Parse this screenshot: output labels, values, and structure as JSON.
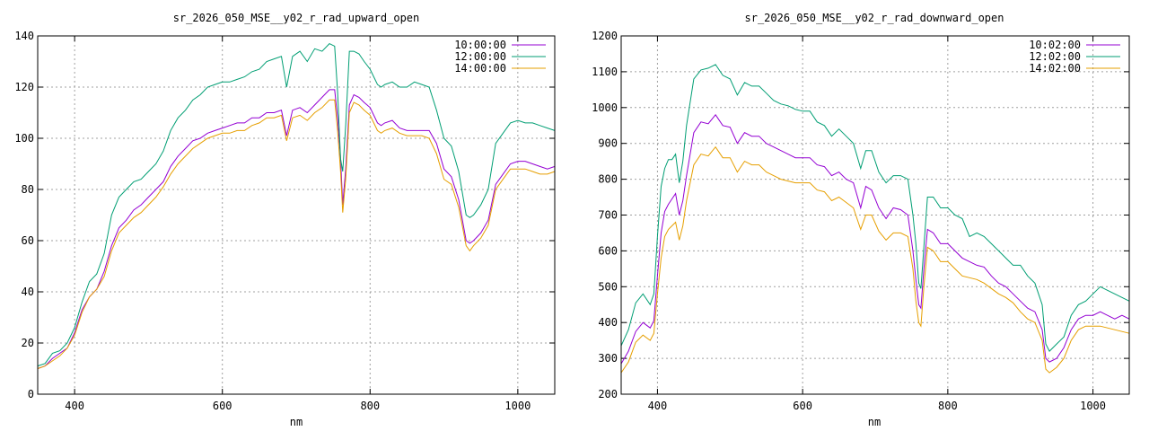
{
  "chart_data": [
    {
      "type": "line",
      "title": "sr_2026_050_MSE__y02_r_rad_upward_open",
      "xlabel": "nm",
      "ylabel": "",
      "xlim": [
        350,
        1050
      ],
      "ylim": [
        0,
        140
      ],
      "xticks": [
        400,
        600,
        800,
        1000
      ],
      "yticks": [
        0,
        20,
        40,
        60,
        80,
        100,
        120,
        140
      ],
      "grid": true,
      "legend_position": "top-right",
      "x": [
        350,
        360,
        370,
        380,
        390,
        400,
        410,
        420,
        430,
        440,
        450,
        460,
        470,
        480,
        490,
        500,
        510,
        520,
        530,
        540,
        550,
        560,
        570,
        580,
        590,
        600,
        610,
        620,
        630,
        640,
        650,
        660,
        670,
        680,
        687,
        695,
        705,
        715,
        725,
        735,
        745,
        752,
        756,
        760,
        763,
        767,
        772,
        778,
        785,
        792,
        800,
        810,
        815,
        820,
        830,
        840,
        850,
        860,
        870,
        880,
        890,
        900,
        910,
        920,
        930,
        935,
        940,
        950,
        960,
        970,
        980,
        990,
        1000,
        1010,
        1020,
        1030,
        1040,
        1050
      ],
      "series": [
        {
          "name": "10:00:00",
          "color": "#9400d3",
          "values": [
            10,
            11,
            14,
            16,
            18,
            24,
            33,
            38,
            41,
            48,
            58,
            65,
            68,
            72,
            74,
            77,
            80,
            83,
            89,
            93,
            96,
            99,
            100,
            102,
            103,
            104,
            105,
            106,
            106,
            108,
            108,
            110,
            110,
            111,
            101,
            111,
            112,
            110,
            113,
            116,
            119,
            119,
            108,
            92,
            74,
            88,
            113,
            117,
            116,
            114,
            112,
            106,
            105,
            106,
            107,
            104,
            103,
            103,
            103,
            103,
            98,
            88,
            85,
            76,
            60,
            59,
            60,
            63,
            68,
            82,
            86,
            90,
            91,
            91,
            90,
            89,
            88,
            89
          ]
        },
        {
          "name": "12:00:00",
          "color": "#009e73",
          "values": [
            11,
            12,
            16,
            17,
            20,
            26,
            36,
            44,
            47,
            55,
            70,
            77,
            80,
            83,
            84,
            87,
            90,
            95,
            103,
            108,
            111,
            115,
            117,
            120,
            121,
            122,
            122,
            123,
            124,
            126,
            127,
            130,
            131,
            132,
            120,
            132,
            134,
            130,
            135,
            134,
            137,
            136,
            118,
            92,
            87,
            105,
            134,
            134,
            133,
            130,
            127,
            121,
            120,
            121,
            122,
            120,
            120,
            122,
            121,
            120,
            111,
            100,
            97,
            87,
            70,
            69,
            70,
            74,
            80,
            98,
            102,
            106,
            107,
            106,
            106,
            105,
            104,
            103
          ]
        },
        {
          "name": "14:00:00",
          "color": "#e69f00",
          "values": [
            10,
            11,
            13,
            15,
            18,
            23,
            32,
            38,
            41,
            46,
            56,
            63,
            66,
            69,
            71,
            74,
            77,
            81,
            86,
            90,
            93,
            96,
            98,
            100,
            101,
            102,
            102,
            103,
            103,
            105,
            106,
            108,
            108,
            109,
            99,
            108,
            109,
            107,
            110,
            112,
            115,
            115,
            103,
            87,
            71,
            84,
            110,
            114,
            113,
            111,
            109,
            103,
            102,
            103,
            104,
            102,
            101,
            101,
            101,
            100,
            94,
            84,
            82,
            73,
            58,
            56,
            58,
            61,
            66,
            80,
            84,
            88,
            88,
            88,
            87,
            86,
            86,
            87
          ]
        }
      ]
    },
    {
      "type": "line",
      "title": "sr_2026_050_MSE__y02_r_rad_downward_open",
      "xlabel": "nm",
      "ylabel": "",
      "xlim": [
        350,
        1050
      ],
      "ylim": [
        200,
        1200
      ],
      "xticks": [
        400,
        600,
        800,
        1000
      ],
      "yticks": [
        200,
        300,
        400,
        500,
        600,
        700,
        800,
        900,
        1000,
        1100,
        1200
      ],
      "grid": true,
      "legend_position": "top-right",
      "x": [
        350,
        360,
        370,
        380,
        390,
        395,
        400,
        405,
        410,
        415,
        420,
        425,
        430,
        435,
        440,
        450,
        460,
        470,
        480,
        490,
        500,
        510,
        520,
        530,
        540,
        550,
        560,
        570,
        580,
        590,
        600,
        610,
        620,
        630,
        640,
        650,
        660,
        670,
        680,
        687,
        695,
        705,
        715,
        725,
        735,
        745,
        752,
        756,
        760,
        763,
        767,
        772,
        780,
        790,
        800,
        810,
        820,
        830,
        840,
        850,
        860,
        870,
        880,
        890,
        900,
        910,
        920,
        930,
        935,
        940,
        950,
        960,
        970,
        980,
        990,
        1000,
        1010,
        1020,
        1030,
        1040,
        1050
      ],
      "series": [
        {
          "name": "10:02:00",
          "color": "#9400d3",
          "values": [
            285,
            320,
            375,
            400,
            385,
            405,
            530,
            650,
            710,
            730,
            745,
            760,
            700,
            740,
            810,
            930,
            960,
            955,
            980,
            950,
            945,
            900,
            930,
            920,
            920,
            900,
            890,
            880,
            870,
            860,
            860,
            860,
            840,
            835,
            810,
            820,
            800,
            790,
            720,
            780,
            770,
            720,
            690,
            720,
            715,
            700,
            600,
            520,
            450,
            440,
            550,
            660,
            650,
            620,
            620,
            600,
            580,
            570,
            560,
            555,
            530,
            510,
            500,
            480,
            460,
            440,
            430,
            380,
            300,
            290,
            300,
            330,
            380,
            410,
            420,
            420,
            430,
            420,
            410,
            420,
            410
          ]
        },
        {
          "name": "12:02:00",
          "color": "#009e73",
          "values": [
            335,
            380,
            455,
            480,
            450,
            480,
            640,
            780,
            830,
            855,
            855,
            870,
            790,
            850,
            950,
            1080,
            1105,
            1110,
            1120,
            1090,
            1080,
            1035,
            1070,
            1060,
            1060,
            1040,
            1020,
            1010,
            1005,
            995,
            990,
            990,
            960,
            950,
            920,
            940,
            920,
            900,
            830,
            880,
            880,
            820,
            790,
            810,
            810,
            800,
            700,
            620,
            510,
            495,
            610,
            750,
            750,
            720,
            720,
            700,
            690,
            640,
            650,
            640,
            620,
            600,
            580,
            560,
            560,
            530,
            510,
            450,
            340,
            320,
            340,
            360,
            420,
            450,
            460,
            480,
            500,
            490,
            480,
            470,
            460
          ]
        },
        {
          "name": "14:02:00",
          "color": "#e69f00",
          "values": [
            260,
            290,
            345,
            365,
            350,
            370,
            480,
            580,
            640,
            660,
            670,
            680,
            630,
            670,
            740,
            840,
            870,
            865,
            890,
            860,
            860,
            820,
            850,
            840,
            840,
            820,
            810,
            800,
            795,
            790,
            790,
            790,
            770,
            765,
            740,
            750,
            735,
            720,
            660,
            700,
            700,
            655,
            630,
            650,
            650,
            640,
            550,
            460,
            400,
            390,
            500,
            610,
            600,
            570,
            570,
            550,
            530,
            525,
            520,
            510,
            495,
            480,
            470,
            455,
            430,
            410,
            400,
            350,
            270,
            260,
            275,
            300,
            350,
            380,
            390,
            390,
            390,
            385,
            380,
            375,
            370
          ]
        }
      ]
    }
  ]
}
